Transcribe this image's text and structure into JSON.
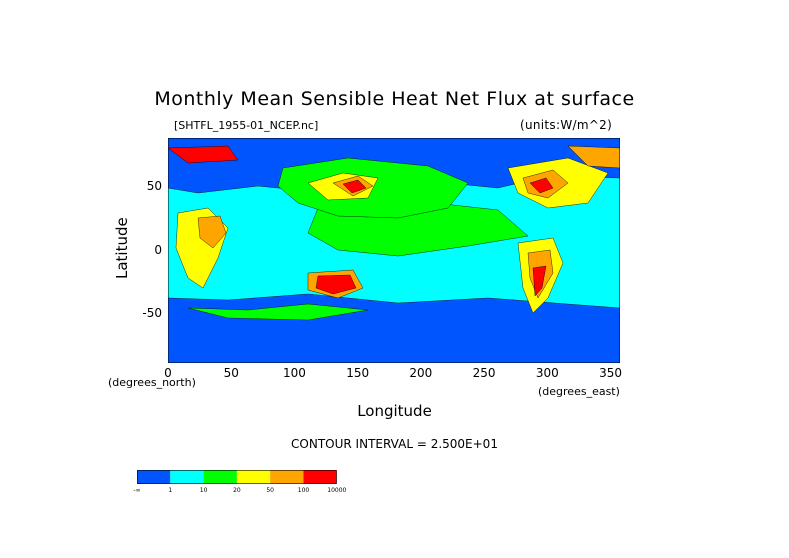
{
  "chart_data": {
    "type": "heatmap",
    "title": "Monthly Mean Sensible Heat Net Flux at surface",
    "subtitle_left": "[SHTFL_1955-01_NCEP.nc]",
    "subtitle_right": "(units:W/m^2)",
    "xlabel": "Longitude",
    "ylabel": "Latitude",
    "x_unit_label": "(degrees_east)",
    "y_unit_label": "(degrees_north)",
    "xlim": [
      0,
      357.5
    ],
    "ylim": [
      -88.5,
      88.5
    ],
    "x_ticks": [
      "0",
      "50",
      "100",
      "150",
      "200",
      "250",
      "300",
      "350"
    ],
    "y_ticks": [
      "50",
      "0",
      "-50"
    ],
    "contour_interval_text": "CONTOUR INTERVAL = 2.500E+01",
    "legend": {
      "colors": [
        "#0055ff",
        "#00ffff",
        "#00ff00",
        "#ffff00",
        "#ffa500",
        "#ff0000"
      ],
      "labels": [
        "-∞",
        "1",
        "10",
        "20",
        "50",
        "100",
        "10000"
      ]
    }
  }
}
